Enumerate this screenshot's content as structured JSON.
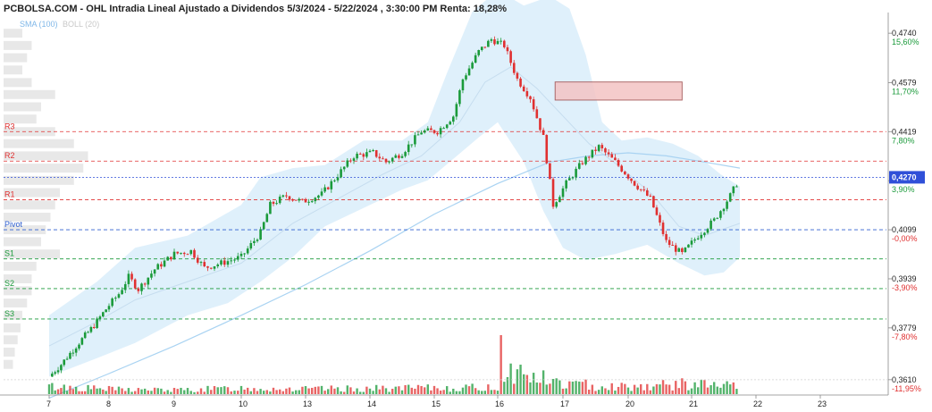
{
  "header": {
    "title": "PCBOLSA.COM - OHL Intradia Lineal Ajustado a Dividendos 5/3/2024 - 5/22/2024 , 3:30:00 PM Renta: 18,28%",
    "legend_sma": "SMA (100)",
    "legend_boll": "BOLL (20)"
  },
  "colors": {
    "up": "#1a9a3a",
    "down": "#e03030",
    "band_fill": "#dbeefb",
    "sma_line": "#a9d3f2",
    "resistance": "#e03030",
    "support": "#1a9a3a",
    "pivot": "#3060d0",
    "last_price": "#3050d8",
    "zone_fill": "#f4c4c4"
  },
  "chart_data": {
    "type": "candlestick",
    "x_ticks": [
      "7",
      "8",
      "9",
      "10",
      "13",
      "14",
      "15",
      "16",
      "17",
      "20",
      "21",
      "22",
      "23"
    ],
    "y_ticks": [
      {
        "value": 0.474,
        "label": "0,4740",
        "pct": "15,60%"
      },
      {
        "value": 0.4579,
        "label": "0,4579",
        "pct": "11,70%"
      },
      {
        "value": 0.4419,
        "label": "0,4419",
        "pct": "7,80%"
      },
      {
        "value": 0.4259,
        "label": "",
        "pct": "3,90%"
      },
      {
        "value": 0.4099,
        "label": "0,4099",
        "pct": "-0,00%"
      },
      {
        "value": 0.3939,
        "label": "0,3939",
        "pct": "-3,90%"
      },
      {
        "value": 0.3779,
        "label": "0,3779",
        "pct": "-7,80%"
      },
      {
        "value": 0.361,
        "label": "0,3610",
        "pct": "-11,95%"
      }
    ],
    "ylim": [
      0.356,
      0.479
    ],
    "last_price": {
      "value": 0.427,
      "label": "0,4270"
    },
    "levels": [
      {
        "name": "R3",
        "value": 0.4419,
        "kind": "resistance"
      },
      {
        "name": "R2",
        "value": 0.4323,
        "kind": "resistance"
      },
      {
        "name": "R1",
        "value": 0.4197,
        "kind": "resistance"
      },
      {
        "name": "Pivot",
        "value": 0.4099,
        "kind": "pivot"
      },
      {
        "name": "S1",
        "value": 0.4004,
        "kind": "support"
      },
      {
        "name": "S2",
        "value": 0.3907,
        "kind": "support"
      },
      {
        "name": "S3",
        "value": 0.3808,
        "kind": "support"
      }
    ],
    "zone": {
      "y_low": 0.4522,
      "y_high": 0.4581,
      "day_start": 7.88,
      "day_end": 9.85
    },
    "price_path": [
      [
        0.0,
        0.362
      ],
      [
        0.2,
        0.366
      ],
      [
        0.45,
        0.372
      ],
      [
        0.72,
        0.378
      ],
      [
        0.95,
        0.384
      ],
      [
        1.15,
        0.389
      ],
      [
        1.3,
        0.3945
      ],
      [
        1.45,
        0.3905
      ],
      [
        1.7,
        0.397
      ],
      [
        2.0,
        0.402
      ],
      [
        2.25,
        0.403
      ],
      [
        2.45,
        0.3975
      ],
      [
        2.7,
        0.399
      ],
      [
        3.0,
        0.401
      ],
      [
        3.3,
        0.409
      ],
      [
        3.45,
        0.418
      ],
      [
        3.7,
        0.421
      ],
      [
        3.95,
        0.419
      ],
      [
        4.25,
        0.4215
      ],
      [
        4.45,
        0.4265
      ],
      [
        4.75,
        0.434
      ],
      [
        5.05,
        0.435
      ],
      [
        5.25,
        0.432
      ],
      [
        5.5,
        0.435
      ],
      [
        5.8,
        0.442
      ],
      [
        6.05,
        0.442
      ],
      [
        6.3,
        0.447
      ],
      [
        6.45,
        0.459
      ],
      [
        6.7,
        0.468
      ],
      [
        6.9,
        0.472
      ],
      [
        7.1,
        0.47
      ],
      [
        7.3,
        0.459
      ],
      [
        7.5,
        0.453
      ],
      [
        7.7,
        0.44
      ],
      [
        7.85,
        0.418
      ],
      [
        8.05,
        0.425
      ],
      [
        8.3,
        0.432
      ],
      [
        8.55,
        0.437
      ],
      [
        8.8,
        0.432
      ],
      [
        9.1,
        0.425
      ],
      [
        9.35,
        0.42
      ],
      [
        9.6,
        0.406
      ],
      [
        9.85,
        0.402
      ],
      [
        10.1,
        0.408
      ],
      [
        10.35,
        0.413
      ],
      [
        10.6,
        0.421
      ],
      [
        10.75,
        0.427
      ]
    ],
    "bollinger": {
      "upper": [
        [
          0.0,
          0.382
        ],
        [
          0.8,
          0.393
        ],
        [
          1.4,
          0.404
        ],
        [
          2.2,
          0.408
        ],
        [
          3.0,
          0.418
        ],
        [
          3.3,
          0.427
        ],
        [
          3.8,
          0.43
        ],
        [
          4.3,
          0.431
        ],
        [
          4.9,
          0.439
        ],
        [
          5.5,
          0.439
        ],
        [
          5.9,
          0.445
        ],
        [
          6.2,
          0.461
        ],
        [
          6.6,
          0.481
        ],
        [
          7.0,
          0.488
        ],
        [
          7.4,
          0.483
        ],
        [
          7.8,
          0.486
        ],
        [
          8.1,
          0.482
        ],
        [
          8.35,
          0.467
        ],
        [
          8.6,
          0.445
        ],
        [
          8.9,
          0.439
        ],
        [
          9.3,
          0.44
        ],
        [
          9.7,
          0.438
        ],
        [
          10.1,
          0.434
        ],
        [
          10.45,
          0.428
        ],
        [
          10.75,
          0.424
        ]
      ],
      "middle": [
        [
          0.0,
          0.372
        ],
        [
          0.8,
          0.38
        ],
        [
          1.4,
          0.387
        ],
        [
          2.2,
          0.393
        ],
        [
          3.0,
          0.399
        ],
        [
          3.8,
          0.412
        ],
        [
          4.5,
          0.42
        ],
        [
          5.2,
          0.428
        ],
        [
          5.8,
          0.434
        ],
        [
          6.4,
          0.445
        ],
        [
          6.8,
          0.458
        ],
        [
          7.2,
          0.463
        ],
        [
          7.6,
          0.456
        ],
        [
          8.0,
          0.447
        ],
        [
          8.4,
          0.438
        ],
        [
          8.9,
          0.43
        ],
        [
          9.4,
          0.421
        ],
        [
          9.8,
          0.411
        ],
        [
          10.2,
          0.408
        ],
        [
          10.75,
          0.412
        ]
      ],
      "lower": [
        [
          0.0,
          0.362
        ],
        [
          0.8,
          0.368
        ],
        [
          1.4,
          0.373
        ],
        [
          2.2,
          0.382
        ],
        [
          2.8,
          0.386
        ],
        [
          3.3,
          0.393
        ],
        [
          3.8,
          0.401
        ],
        [
          4.3,
          0.411
        ],
        [
          4.9,
          0.417
        ],
        [
          5.5,
          0.423
        ],
        [
          5.9,
          0.426
        ],
        [
          6.3,
          0.433
        ],
        [
          6.7,
          0.44
        ],
        [
          7.0,
          0.445
        ],
        [
          7.4,
          0.432
        ],
        [
          7.7,
          0.416
        ],
        [
          8.0,
          0.404
        ],
        [
          8.35,
          0.4
        ],
        [
          8.8,
          0.402
        ],
        [
          9.3,
          0.405
        ],
        [
          9.8,
          0.399
        ],
        [
          10.2,
          0.395
        ],
        [
          10.5,
          0.396
        ],
        [
          10.75,
          0.401
        ]
      ]
    },
    "sma100": [
      [
        0.0,
        0.355
      ],
      [
        1.0,
        0.363
      ],
      [
        2.0,
        0.372
      ],
      [
        3.0,
        0.382
      ],
      [
        4.0,
        0.392
      ],
      [
        5.0,
        0.403
      ],
      [
        6.0,
        0.415
      ],
      [
        7.0,
        0.425
      ],
      [
        7.8,
        0.432
      ],
      [
        8.4,
        0.434
      ],
      [
        9.0,
        0.435
      ],
      [
        9.6,
        0.434
      ],
      [
        10.2,
        0.432
      ],
      [
        10.75,
        0.43
      ]
    ],
    "volume_path": [
      [
        0.0,
        0.15
      ],
      [
        1.0,
        0.1
      ],
      [
        2.0,
        0.08
      ],
      [
        3.0,
        0.12
      ],
      [
        4.0,
        0.1
      ],
      [
        5.0,
        0.11
      ],
      [
        6.0,
        0.12
      ],
      [
        7.0,
        0.13
      ],
      [
        7.05,
        1.0
      ],
      [
        7.1,
        0.5
      ],
      [
        7.4,
        0.4
      ],
      [
        8.0,
        0.2
      ],
      [
        9.0,
        0.15
      ],
      [
        10.0,
        0.2
      ],
      [
        10.75,
        0.15
      ]
    ],
    "volume_profile": [
      [
        0.474,
        0.2
      ],
      [
        0.47,
        0.3
      ],
      [
        0.466,
        0.25
      ],
      [
        0.462,
        0.2
      ],
      [
        0.4579,
        0.3
      ],
      [
        0.454,
        0.55
      ],
      [
        0.45,
        0.4
      ],
      [
        0.446,
        0.35
      ],
      [
        0.4419,
        0.55
      ],
      [
        0.438,
        0.75
      ],
      [
        0.434,
        0.9
      ],
      [
        0.43,
        0.85
      ],
      [
        0.426,
        0.75
      ],
      [
        0.422,
        0.6
      ],
      [
        0.418,
        0.55
      ],
      [
        0.414,
        0.5
      ],
      [
        0.4099,
        0.45
      ],
      [
        0.406,
        0.4
      ],
      [
        0.402,
        0.6
      ],
      [
        0.398,
        0.35
      ],
      [
        0.3939,
        0.3
      ],
      [
        0.39,
        0.3
      ],
      [
        0.386,
        0.25
      ],
      [
        0.382,
        0.2
      ],
      [
        0.3779,
        0.18
      ],
      [
        0.374,
        0.15
      ],
      [
        0.37,
        0.12
      ],
      [
        0.366,
        0.1
      ]
    ]
  }
}
